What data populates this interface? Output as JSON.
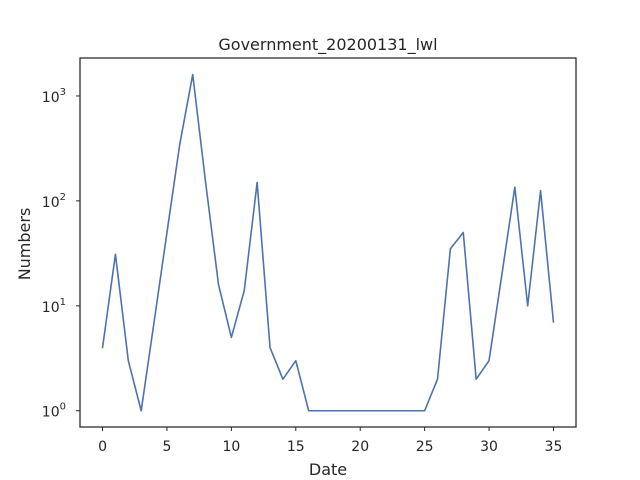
{
  "chart_data": {
    "type": "line",
    "title": "Government_20200131_lwl",
    "xlabel": "Date",
    "ylabel": "Numbers",
    "yscale": "log",
    "xlim": [
      -1.75,
      36.75
    ],
    "ylim": [
      0.7,
      2300
    ],
    "grid": false,
    "legend": "none",
    "x_ticks": [
      0,
      5,
      10,
      15,
      20,
      25,
      30,
      35
    ],
    "x_tick_labels": [
      "0",
      "5",
      "10",
      "15",
      "20",
      "25",
      "30",
      "35"
    ],
    "y_ticks": [
      1,
      10,
      100,
      1000
    ],
    "y_tick_labels": [
      {
        "base": "10",
        "exp": "0"
      },
      {
        "base": "10",
        "exp": "1"
      },
      {
        "base": "10",
        "exp": "2"
      },
      {
        "base": "10",
        "exp": "3"
      }
    ],
    "series": [
      {
        "color": "#4c72b0",
        "x": [
          0,
          1,
          2,
          3,
          4,
          5,
          6,
          7,
          8,
          9,
          10,
          11,
          12,
          13,
          14,
          15,
          16,
          17,
          18,
          19,
          20,
          21,
          22,
          23,
          24,
          25,
          26,
          27,
          28,
          29,
          30,
          31,
          32,
          33,
          34,
          35
        ],
        "values": [
          4,
          31,
          3,
          1,
          7,
          50,
          350,
          1600,
          150,
          16,
          5,
          14,
          150,
          4,
          2,
          3,
          1,
          1,
          1,
          1,
          1,
          1,
          1,
          1,
          1,
          1,
          2,
          35,
          50,
          2,
          3,
          20,
          135,
          10,
          125,
          7
        ]
      }
    ]
  }
}
